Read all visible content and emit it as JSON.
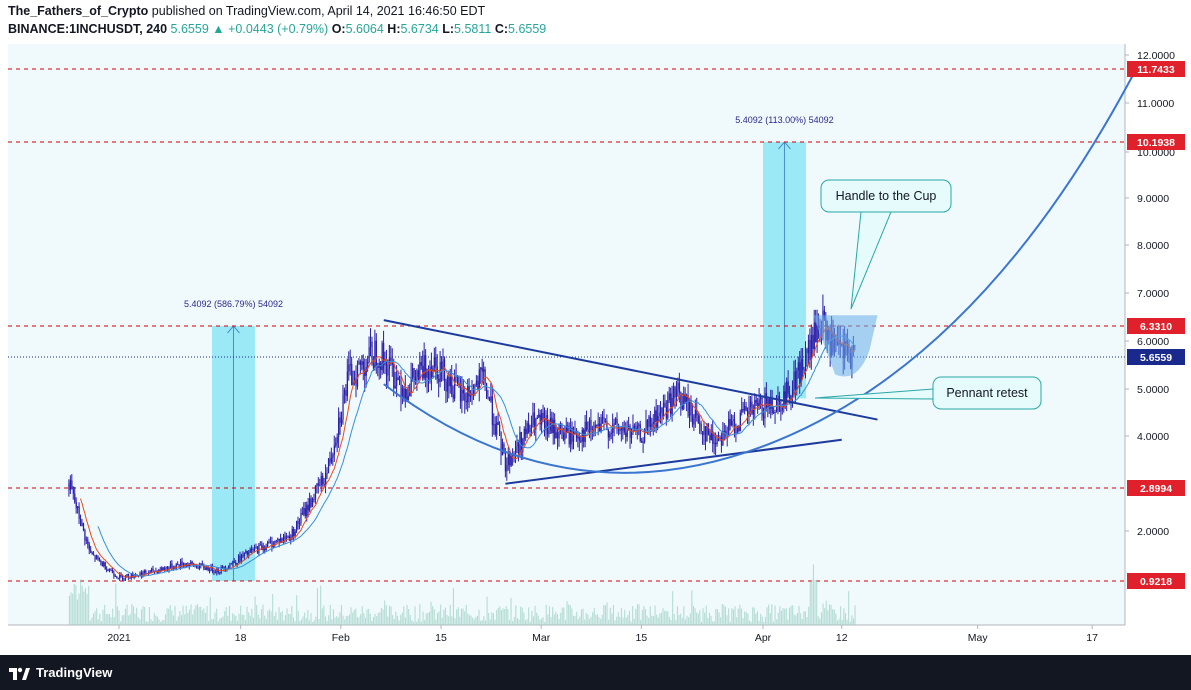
{
  "header": {
    "author": "The_Fathers_of_Crypto",
    "published": "published on TradingView.com, April 14, 2021 16:46:50 EDT",
    "symbol": "BINANCE:1INCHUSDT, 240",
    "last": "5.6559",
    "change": "+0.0443 (+0.79%)",
    "o_label": "O:",
    "o_value": "5.6064",
    "h_label": "H:",
    "h_value": "5.6734",
    "l_label": "L:",
    "l_value": "5.5811",
    "c_label": "C:",
    "c_value": "5.6559"
  },
  "footer": {
    "brand": "TradingView"
  },
  "colors": {
    "background": "#f0f9fc",
    "candle": "#2a1fa8",
    "sma_red": "#e84b1c",
    "sma_blue": "#3a8fd9",
    "level_line": "#d50000",
    "price_tag": "#e0202a",
    "current_tag": "#1a2a8c",
    "trendline": "#1d3a9e",
    "cup_curve": "#3a75d0",
    "measure_fill": "#7fe3f5",
    "volume": "#9ad0c0"
  },
  "chart_data": {
    "type": "candlestick",
    "symbol": "1INCHUSDT",
    "timeframe": "240",
    "y_axis_ticks": [
      "12.0000",
      "11.0000",
      "10.0000",
      "9.0000",
      "8.0000",
      "7.0000",
      "6.0000",
      "5.0000",
      "4.0000",
      "2.0000"
    ],
    "x_axis_ticks": [
      "2021",
      "18",
      "Feb",
      "15",
      "Mar",
      "15",
      "Apr",
      "12",
      "May",
      "17"
    ],
    "horizontal_levels": [
      11.7433,
      10.1938,
      6.331,
      2.8994,
      0.9218
    ],
    "level_labels": [
      "11.7433",
      "10.1938",
      "6.3310",
      "2.8994",
      "0.9218"
    ],
    "current_price": 5.6559,
    "current_price_label": "5.6559",
    "measurements": [
      {
        "label": "5.4092 (586.79%) 54092"
      },
      {
        "label": "5.4092 (113.00%) 54092"
      }
    ],
    "annotations": [
      "Handle to the Cup",
      "Pennant retest"
    ],
    "approx_price_path": [
      [
        "2020-12-25",
        3.0
      ],
      [
        "2020-12-28",
        1.5
      ],
      [
        "2021-01-01",
        1.0
      ],
      [
        "2021-01-05",
        1.1
      ],
      [
        "2021-01-10",
        1.3
      ],
      [
        "2021-01-15",
        1.15
      ],
      [
        "2021-01-20",
        1.6
      ],
      [
        "2021-01-25",
        1.9
      ],
      [
        "2021-01-30",
        3.2
      ],
      [
        "2021-02-02",
        5.2
      ],
      [
        "2021-02-06",
        5.8
      ],
      [
        "2021-02-10",
        5.0
      ],
      [
        "2021-02-14",
        5.6
      ],
      [
        "2021-02-18",
        4.8
      ],
      [
        "2021-02-21",
        5.2
      ],
      [
        "2021-02-24",
        3.4
      ],
      [
        "2021-02-28",
        4.3
      ],
      [
        "2021-03-05",
        4.0
      ],
      [
        "2021-03-10",
        4.2
      ],
      [
        "2021-03-15",
        4.0
      ],
      [
        "2021-03-20",
        4.9
      ],
      [
        "2021-03-25",
        3.9
      ],
      [
        "2021-03-30",
        4.5
      ],
      [
        "2021-04-04",
        4.8
      ],
      [
        "2021-04-07",
        5.6
      ],
      [
        "2021-04-09",
        6.4
      ],
      [
        "2021-04-11",
        5.8
      ],
      [
        "2021-04-14",
        5.6559
      ]
    ]
  }
}
